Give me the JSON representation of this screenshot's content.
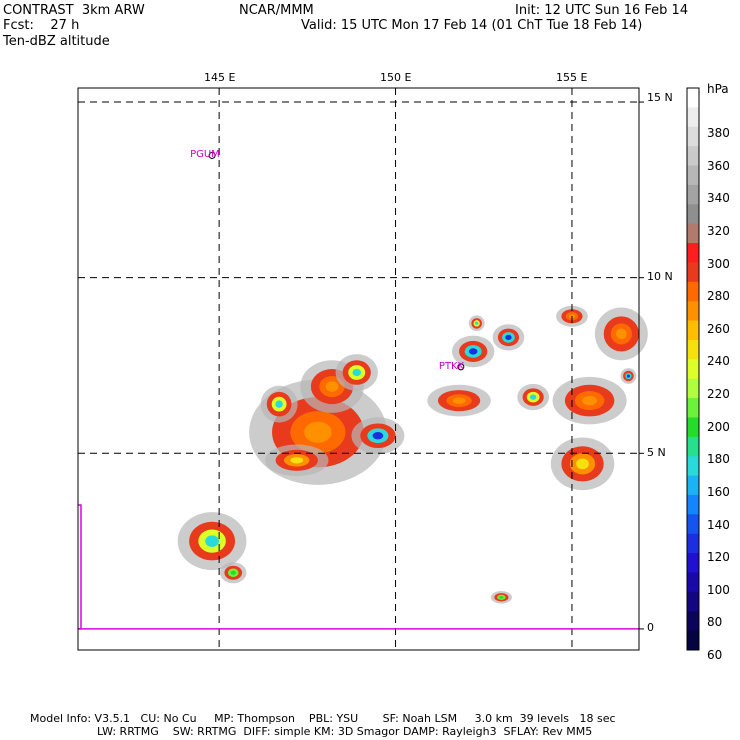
{
  "header": {
    "line1_left": "CONTRAST  3km ARW",
    "line1_center": "NCAR/MMM",
    "line1_right": "Init: 12 UTC Sun 16 Feb 14",
    "line2_left": "Fcst:    27 h",
    "line2_right": "Valid: 15 UTC Mon 17 Feb 14 (01 ChT Tue 18 Feb 14)",
    "line3_left": "Ten-dBZ altitude"
  },
  "map": {
    "lon_labels": [
      "145 E",
      "150 E",
      "155 E"
    ],
    "lat_labels": [
      "15 N",
      "10 N",
      "5 N",
      "0"
    ],
    "stations": [
      {
        "id": "PGUM",
        "lon": 144.8,
        "lat": 13.48
      },
      {
        "id": "PTKK",
        "lon": 151.85,
        "lat": 7.46
      }
    ],
    "extent": {
      "lon_min": 141,
      "lon_max": 156.9,
      "lat_min": -0.6,
      "lat_max": 15.4
    }
  },
  "colorbar": {
    "unit": "hPa",
    "labels": [
      "380",
      "360",
      "340",
      "320",
      "300",
      "280",
      "260",
      "240",
      "220",
      "200",
      "180",
      "160",
      "140",
      "120",
      "100",
      "80",
      "60"
    ],
    "colors": [
      "#ffffff",
      "#ededed",
      "#dcdcdc",
      "#cacaca",
      "#b7b7b7",
      "#a3a3a3",
      "#8f8f8f",
      "#b07a6c",
      "#ff1d1d",
      "#e83a1c",
      "#ff6a00",
      "#ff9000",
      "#ffbe00",
      "#f5e20c",
      "#dcff28",
      "#b0ff3e",
      "#6cf23a",
      "#26dc2a",
      "#27e08e",
      "#2ad9d9",
      "#1cb3f5",
      "#1485ff",
      "#1555ee",
      "#1c2ee0",
      "#2010d0",
      "#1a08a8",
      "#140680",
      "#0c045a",
      "#050340"
    ]
  },
  "footer": {
    "line1": "Model Info: V3.5.1   CU: No Cu     MP: Thompson    PBL: YSU       SF: Noah LSM     3.0 km  39 levels   18 sec",
    "line2": "LW: RRTMG    SW: RRTMG  DIFF: simple KM: 3D Smagor DAMP: Rayleigh3  SFLAY: Rev MM5"
  },
  "radar_cells": [
    {
      "lon": 147.8,
      "lat": 5.6,
      "rx": 1.3,
      "ry": 1.0,
      "core": "red"
    },
    {
      "lon": 147.2,
      "lat": 4.8,
      "rx": 0.6,
      "ry": 0.3,
      "core": "yellow"
    },
    {
      "lon": 146.7,
      "lat": 6.4,
      "rx": 0.35,
      "ry": 0.35,
      "core": "cyan"
    },
    {
      "lon": 148.2,
      "lat": 6.9,
      "rx": 0.6,
      "ry": 0.5,
      "core": "red"
    },
    {
      "lon": 148.9,
      "lat": 7.3,
      "rx": 0.4,
      "ry": 0.35,
      "core": "cyan"
    },
    {
      "lon": 149.5,
      "lat": 5.5,
      "rx": 0.5,
      "ry": 0.35,
      "core": "blue"
    },
    {
      "lon": 144.8,
      "lat": 2.5,
      "rx": 0.65,
      "ry": 0.55,
      "core": "cyan"
    },
    {
      "lon": 145.4,
      "lat": 1.6,
      "rx": 0.25,
      "ry": 0.2,
      "core": "green"
    },
    {
      "lon": 151.8,
      "lat": 6.5,
      "rx": 0.6,
      "ry": 0.3,
      "core": "red"
    },
    {
      "lon": 152.2,
      "lat": 7.9,
      "rx": 0.4,
      "ry": 0.3,
      "core": "blue"
    },
    {
      "lon": 153.2,
      "lat": 8.3,
      "rx": 0.3,
      "ry": 0.25,
      "core": "blue"
    },
    {
      "lon": 153.9,
      "lat": 6.6,
      "rx": 0.3,
      "ry": 0.25,
      "core": "cyan"
    },
    {
      "lon": 155.5,
      "lat": 6.5,
      "rx": 0.7,
      "ry": 0.45,
      "core": "red"
    },
    {
      "lon": 156.4,
      "lat": 8.4,
      "rx": 0.5,
      "ry": 0.5,
      "core": "red"
    },
    {
      "lon": 155.3,
      "lat": 4.7,
      "rx": 0.6,
      "ry": 0.5,
      "core": "yellow"
    },
    {
      "lon": 156.6,
      "lat": 7.2,
      "rx": 0.15,
      "ry": 0.15,
      "core": "blue"
    },
    {
      "lon": 153.0,
      "lat": 0.9,
      "rx": 0.2,
      "ry": 0.12,
      "core": "green"
    },
    {
      "lon": 152.3,
      "lat": 8.7,
      "rx": 0.15,
      "ry": 0.15,
      "core": "cyan"
    },
    {
      "lon": 155.0,
      "lat": 8.9,
      "rx": 0.3,
      "ry": 0.2,
      "core": "red"
    }
  ]
}
